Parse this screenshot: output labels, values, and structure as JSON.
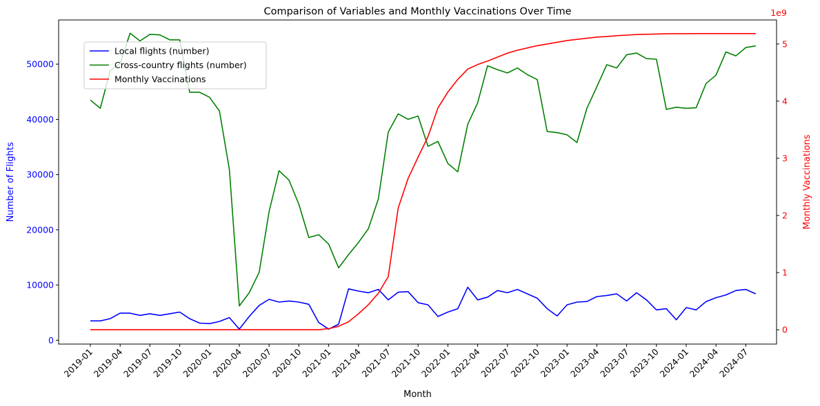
{
  "chart_data": {
    "type": "line",
    "title": "Comparison of Variables and Monthly Vaccinations Over Time",
    "xlabel": "Month",
    "ylabel_left": "Number of Flights",
    "ylabel_right": "Monthly Vaccinations",
    "right_axis_multiplier": "1e9",
    "ylim_left": [
      -700,
      58000
    ],
    "ylim_right": [
      -0.25,
      5.42
    ],
    "yticks_left": [
      0,
      10000,
      20000,
      30000,
      40000,
      50000
    ],
    "yticks_right": [
      0,
      1,
      2,
      3,
      4,
      5
    ],
    "legend_position": "upper-left",
    "grid": false,
    "x_tick_labels": [
      "2019-01",
      "2019-04",
      "2019-07",
      "2019-10",
      "2020-01",
      "2020-04",
      "2020-07",
      "2020-10",
      "2021-01",
      "2021-04",
      "2021-07",
      "2021-10",
      "2022-01",
      "2022-04",
      "2022-07",
      "2022-10",
      "2023-01",
      "2023-04",
      "2023-07",
      "2023-10",
      "2024-01",
      "2024-04",
      "2024-07"
    ],
    "x": [
      "2019-01",
      "2019-02",
      "2019-03",
      "2019-04",
      "2019-05",
      "2019-06",
      "2019-07",
      "2019-08",
      "2019-09",
      "2019-10",
      "2019-11",
      "2019-12",
      "2020-01",
      "2020-02",
      "2020-03",
      "2020-04",
      "2020-05",
      "2020-06",
      "2020-07",
      "2020-08",
      "2020-09",
      "2020-10",
      "2020-11",
      "2020-12",
      "2021-01",
      "2021-02",
      "2021-03",
      "2021-04",
      "2021-05",
      "2021-06",
      "2021-07",
      "2021-08",
      "2021-09",
      "2021-10",
      "2021-11",
      "2021-12",
      "2022-01",
      "2022-02",
      "2022-03",
      "2022-04",
      "2022-05",
      "2022-06",
      "2022-07",
      "2022-08",
      "2022-09",
      "2022-10",
      "2022-11",
      "2022-12",
      "2023-01",
      "2023-02",
      "2023-03",
      "2023-04",
      "2023-05",
      "2023-06",
      "2023-07",
      "2023-08",
      "2023-09",
      "2023-10",
      "2023-11",
      "2023-12",
      "2024-01",
      "2024-02",
      "2024-03",
      "2024-04",
      "2024-05",
      "2024-06",
      "2024-07",
      "2024-08"
    ],
    "series": [
      {
        "name": "Local flights (number)",
        "color": "#0000ff",
        "axis": "left",
        "values": [
          3500,
          3500,
          3900,
          4900,
          4900,
          4500,
          4800,
          4500,
          4800,
          5100,
          3900,
          3100,
          3000,
          3400,
          4100,
          2000,
          4300,
          6300,
          7400,
          6900,
          7100,
          6900,
          6500,
          3200,
          2000,
          2900,
          9300,
          8900,
          8600,
          9200,
          7300,
          8700,
          8800,
          6800,
          6400,
          4300,
          5100,
          5700,
          9600,
          7300,
          7800,
          9000,
          8600,
          9200,
          8400,
          7600,
          5700,
          4400,
          6400,
          6900,
          7000,
          7900,
          8100,
          8400,
          7100,
          8600,
          7300,
          5500,
          5700,
          3700,
          5900,
          5500,
          7000,
          7700,
          8200,
          9000,
          9200,
          8400
        ]
      },
      {
        "name": "Cross-country flights (number)",
        "color": "#008000",
        "axis": "left",
        "values": [
          43500,
          42000,
          48800,
          50100,
          55600,
          54200,
          55400,
          55300,
          54400,
          54400,
          44900,
          44900,
          44000,
          41500,
          30900,
          6200,
          8600,
          12300,
          23300,
          30700,
          29000,
          24600,
          18600,
          19100,
          17400,
          13100,
          15500,
          17700,
          20200,
          25600,
          37700,
          41000,
          40000,
          40600,
          35100,
          36000,
          32000,
          30500,
          39100,
          43000,
          49700,
          49000,
          48400,
          49300,
          48100,
          47200,
          37800,
          37600,
          37200,
          35800,
          42000,
          45900,
          49900,
          49300,
          51700,
          52000,
          51000,
          50900,
          41800,
          42200,
          42000,
          42100,
          46500,
          48000,
          52200,
          51500,
          53000,
          53300
        ]
      },
      {
        "name": "Monthly Vaccinations",
        "color": "#ff0000",
        "axis": "right",
        "values": [
          0,
          0,
          0,
          0,
          0,
          0,
          0,
          0,
          0,
          0,
          0,
          0,
          0,
          0,
          0,
          0,
          0,
          0,
          0,
          0,
          0,
          0,
          0,
          0,
          0.02,
          0.06,
          0.14,
          0.28,
          0.44,
          0.64,
          0.93,
          2.13,
          2.65,
          3.02,
          3.38,
          3.88,
          4.16,
          4.38,
          4.56,
          4.64,
          4.7,
          4.77,
          4.84,
          4.89,
          4.93,
          4.97,
          5.0,
          5.03,
          5.06,
          5.08,
          5.1,
          5.12,
          5.13,
          5.145,
          5.155,
          5.165,
          5.17,
          5.175,
          5.178,
          5.18,
          5.181,
          5.182,
          5.182,
          5.182,
          5.182,
          5.182,
          5.182,
          5.182
        ]
      }
    ]
  }
}
